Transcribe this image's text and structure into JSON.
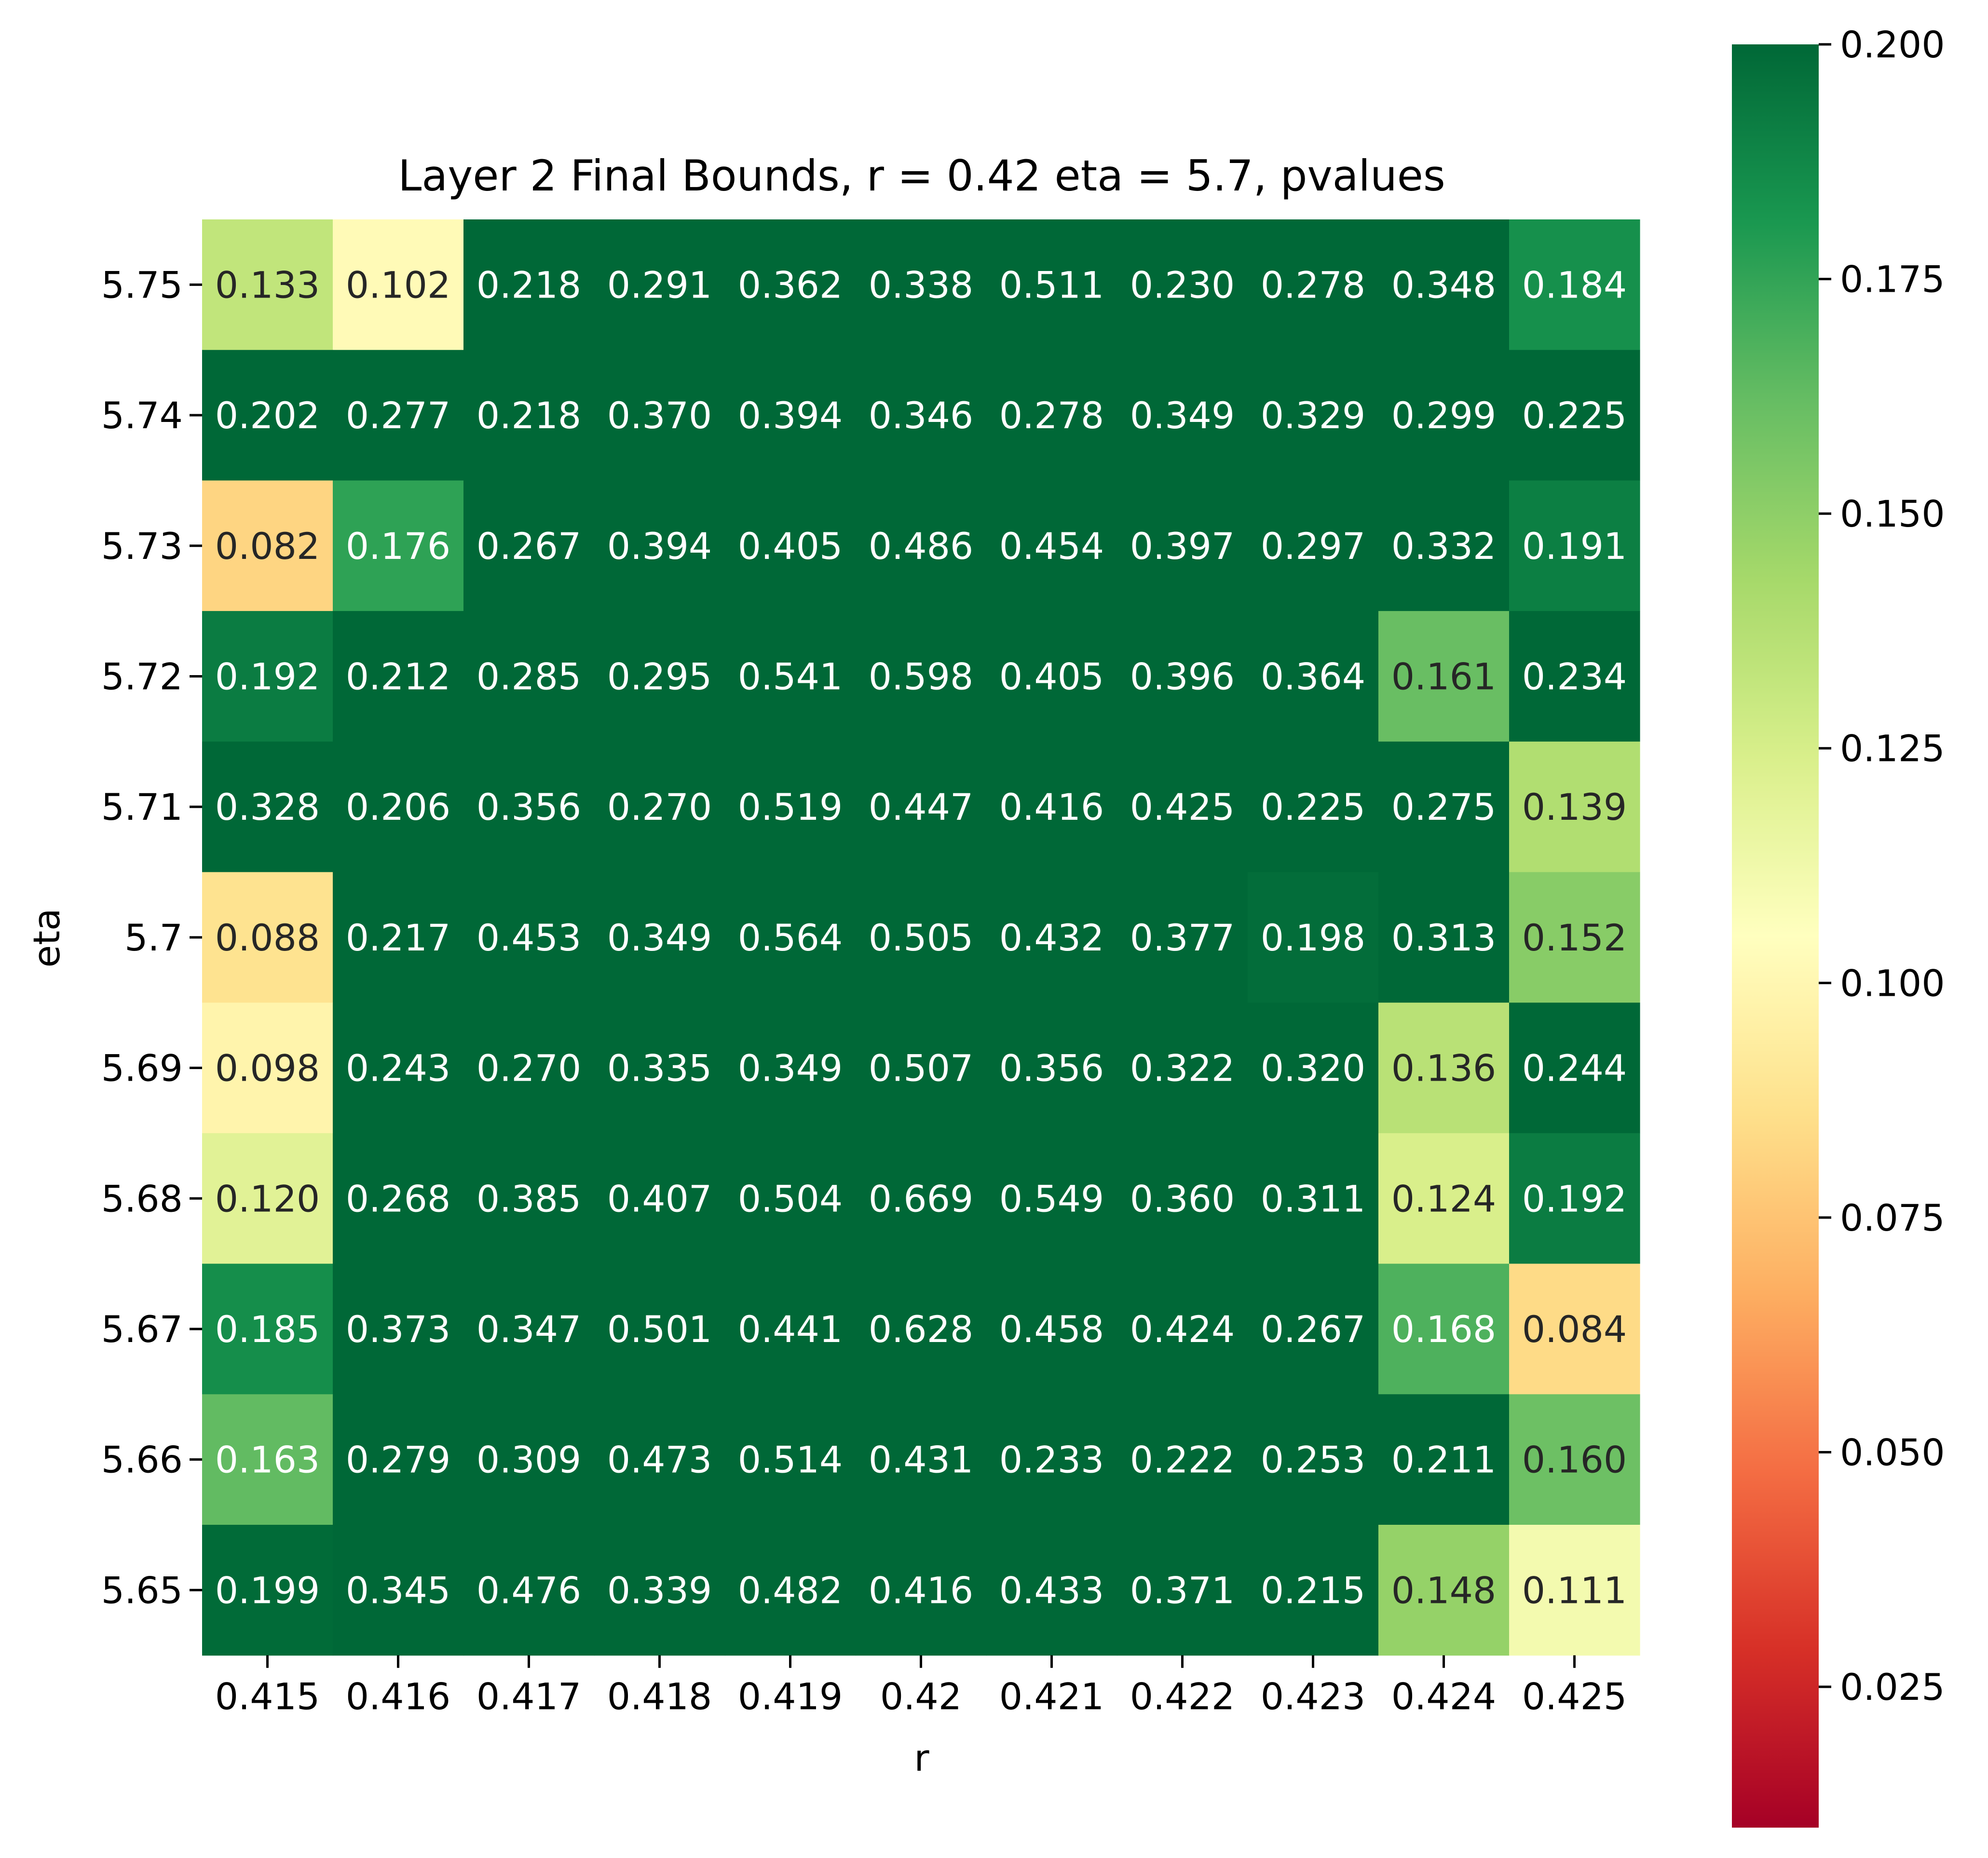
{
  "chart_data": {
    "type": "heatmap",
    "title": "Layer 2 Final Bounds, r = 0.42 eta = 5.7, pvalues",
    "xlabel": "r",
    "ylabel": "eta",
    "x_categories": [
      "0.415",
      "0.416",
      "0.417",
      "0.418",
      "0.419",
      "0.42",
      "0.421",
      "0.422",
      "0.423",
      "0.424",
      "0.425"
    ],
    "y_categories": [
      "5.75",
      "5.74",
      "5.73",
      "5.72",
      "5.71",
      "5.7",
      "5.69",
      "5.68",
      "5.67",
      "5.66",
      "5.65"
    ],
    "values": [
      [
        "0.133",
        "0.102",
        "0.218",
        "0.291",
        "0.362",
        "0.338",
        "0.511",
        "0.230",
        "0.278",
        "0.348",
        "0.184"
      ],
      [
        "0.202",
        "0.277",
        "0.218",
        "0.370",
        "0.394",
        "0.346",
        "0.278",
        "0.349",
        "0.329",
        "0.299",
        "0.225"
      ],
      [
        "0.082",
        "0.176",
        "0.267",
        "0.394",
        "0.405",
        "0.486",
        "0.454",
        "0.397",
        "0.297",
        "0.332",
        "0.191"
      ],
      [
        "0.192",
        "0.212",
        "0.285",
        "0.295",
        "0.541",
        "0.598",
        "0.405",
        "0.396",
        "0.364",
        "0.161",
        "0.234"
      ],
      [
        "0.328",
        "0.206",
        "0.356",
        "0.270",
        "0.519",
        "0.447",
        "0.416",
        "0.425",
        "0.225",
        "0.275",
        "0.139"
      ],
      [
        "0.088",
        "0.217",
        "0.453",
        "0.349",
        "0.564",
        "0.505",
        "0.432",
        "0.377",
        "0.198",
        "0.313",
        "0.152"
      ],
      [
        "0.098",
        "0.243",
        "0.270",
        "0.335",
        "0.349",
        "0.507",
        "0.356",
        "0.322",
        "0.320",
        "0.136",
        "0.244"
      ],
      [
        "0.120",
        "0.268",
        "0.385",
        "0.407",
        "0.504",
        "0.669",
        "0.549",
        "0.360",
        "0.311",
        "0.124",
        "0.192"
      ],
      [
        "0.185",
        "0.373",
        "0.347",
        "0.501",
        "0.441",
        "0.628",
        "0.458",
        "0.424",
        "0.267",
        "0.168",
        "0.084"
      ],
      [
        "0.163",
        "0.279",
        "0.309",
        "0.473",
        "0.514",
        "0.431",
        "0.233",
        "0.222",
        "0.253",
        "0.211",
        "0.160"
      ],
      [
        "0.199",
        "0.345",
        "0.476",
        "0.339",
        "0.482",
        "0.416",
        "0.433",
        "0.371",
        "0.215",
        "0.148",
        "0.111"
      ]
    ],
    "colormap": "RdYlGn",
    "colorbar": {
      "range": [
        0.01,
        0.2
      ],
      "ticks": [
        "0.025",
        "0.050",
        "0.075",
        "0.100",
        "0.125",
        "0.150",
        "0.175",
        "0.200"
      ]
    },
    "grid": false,
    "legend": "colorbar-right"
  }
}
